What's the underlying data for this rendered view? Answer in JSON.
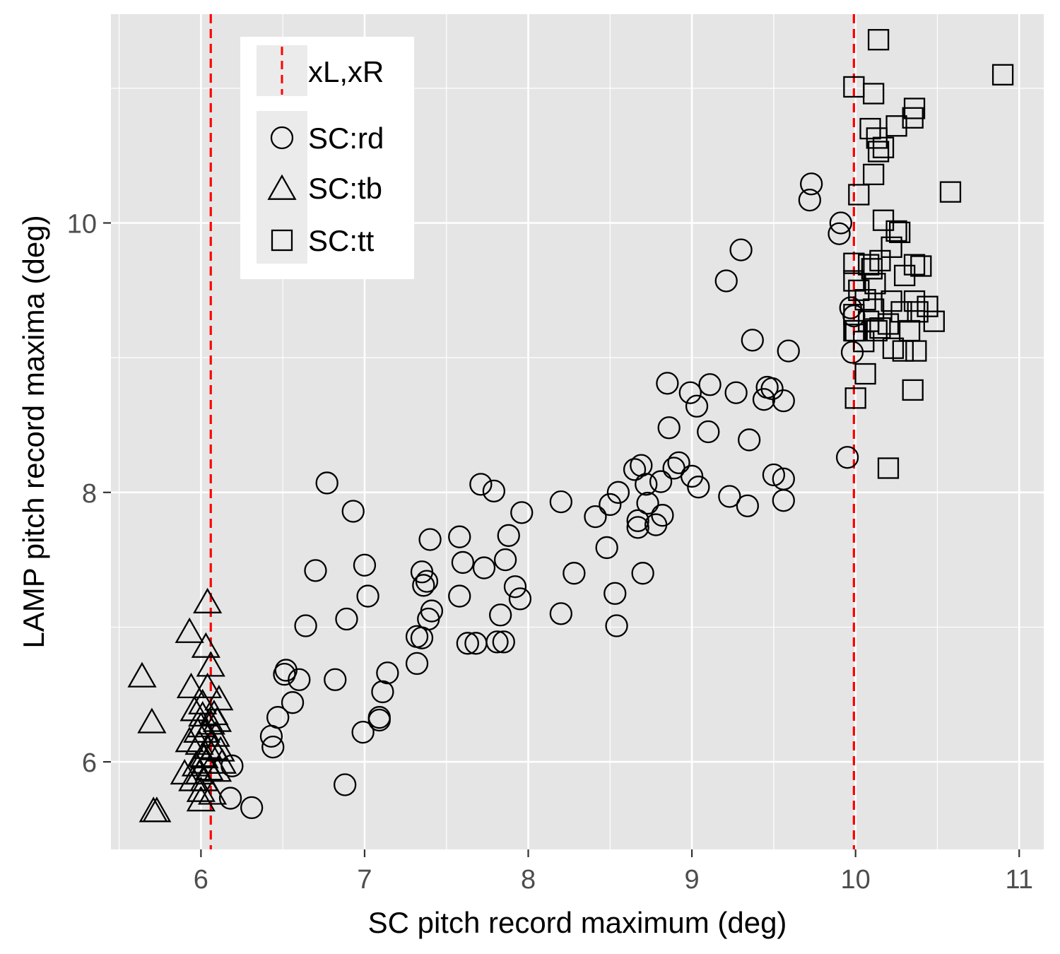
{
  "chart_data": {
    "type": "scatter",
    "title": "",
    "xlabel": "SC pitch record maximum (deg)",
    "ylabel": "LAMP pitch record maxima (deg)",
    "xlim": [
      5.45,
      11.15
    ],
    "ylim": [
      5.35,
      11.55
    ],
    "x_ticks": [
      6,
      7,
      8,
      9,
      10,
      11
    ],
    "x_minor_ticks": [
      5.5,
      6.5,
      7.5,
      8.5,
      9.5,
      10.5
    ],
    "y_ticks": [
      6,
      8,
      10
    ],
    "y_minor_ticks": [
      7,
      9,
      11
    ],
    "grid": true,
    "background": "#e5e5e5",
    "vlines": {
      "label": "xL,xR",
      "x": [
        6.06,
        9.99
      ],
      "color": "#ff0000",
      "style": "dashed"
    },
    "legend": {
      "position": "top-left inside",
      "line_entry": "xL,xR",
      "shape_entries": [
        {
          "label": "SC:rd",
          "shape": "circle"
        },
        {
          "label": "SC:tb",
          "shape": "triangle"
        },
        {
          "label": "SC:tt",
          "shape": "square"
        }
      ]
    },
    "series": [
      {
        "name": "SC:rd",
        "shape": "circle",
        "points": [
          [
            6.19,
            5.97
          ],
          [
            6.18,
            5.73
          ],
          [
            6.31,
            5.66
          ],
          [
            6.43,
            6.19
          ],
          [
            6.44,
            6.11
          ],
          [
            6.47,
            6.33
          ],
          [
            6.51,
            6.65
          ],
          [
            6.52,
            6.68
          ],
          [
            6.56,
            6.44
          ],
          [
            6.6,
            6.61
          ],
          [
            6.64,
            7.01
          ],
          [
            6.7,
            7.42
          ],
          [
            6.77,
            8.07
          ],
          [
            6.82,
            6.61
          ],
          [
            6.88,
            5.83
          ],
          [
            6.89,
            7.06
          ],
          [
            6.93,
            7.86
          ],
          [
            6.99,
            6.22
          ],
          [
            7.0,
            7.46
          ],
          [
            7.02,
            7.23
          ],
          [
            7.09,
            6.33
          ],
          [
            7.09,
            6.31
          ],
          [
            7.11,
            6.52
          ],
          [
            7.14,
            6.66
          ],
          [
            7.32,
            6.73
          ],
          [
            7.32,
            6.93
          ],
          [
            7.35,
            6.92
          ],
          [
            7.35,
            7.41
          ],
          [
            7.36,
            7.31
          ],
          [
            7.38,
            7.34
          ],
          [
            7.39,
            7.06
          ],
          [
            7.4,
            7.65
          ],
          [
            7.41,
            7.12
          ],
          [
            7.58,
            7.23
          ],
          [
            7.58,
            7.67
          ],
          [
            7.6,
            7.48
          ],
          [
            7.63,
            6.88
          ],
          [
            7.68,
            6.88
          ],
          [
            7.71,
            8.06
          ],
          [
            7.73,
            7.44
          ],
          [
            7.79,
            8.01
          ],
          [
            7.81,
            6.89
          ],
          [
            7.83,
            7.09
          ],
          [
            7.85,
            6.89
          ],
          [
            7.86,
            7.5
          ],
          [
            7.88,
            7.68
          ],
          [
            7.92,
            7.3
          ],
          [
            7.95,
            7.21
          ],
          [
            7.96,
            7.85
          ],
          [
            8.2,
            7.93
          ],
          [
            8.2,
            7.1
          ],
          [
            8.28,
            7.4
          ],
          [
            8.41,
            7.82
          ],
          [
            8.48,
            7.59
          ],
          [
            8.5,
            7.91
          ],
          [
            8.53,
            7.25
          ],
          [
            8.54,
            7.01
          ],
          [
            8.55,
            8.0
          ],
          [
            8.65,
            8.17
          ],
          [
            8.67,
            7.79
          ],
          [
            8.67,
            7.74
          ],
          [
            8.69,
            8.2
          ],
          [
            8.7,
            7.4
          ],
          [
            8.72,
            8.06
          ],
          [
            8.73,
            7.92
          ],
          [
            8.78,
            7.76
          ],
          [
            8.81,
            8.08
          ],
          [
            8.82,
            7.83
          ],
          [
            8.85,
            8.81
          ],
          [
            8.86,
            8.48
          ],
          [
            8.89,
            8.18
          ],
          [
            8.92,
            8.22
          ],
          [
            8.99,
            8.74
          ],
          [
            9.0,
            8.12
          ],
          [
            9.03,
            8.64
          ],
          [
            9.04,
            8.04
          ],
          [
            9.1,
            8.45
          ],
          [
            9.11,
            8.8
          ],
          [
            9.21,
            9.57
          ],
          [
            9.23,
            7.97
          ],
          [
            9.27,
            8.74
          ],
          [
            9.3,
            9.8
          ],
          [
            9.34,
            7.9
          ],
          [
            9.35,
            8.39
          ],
          [
            9.37,
            9.13
          ],
          [
            9.44,
            8.69
          ],
          [
            9.46,
            8.78
          ],
          [
            9.49,
            8.77
          ],
          [
            9.5,
            8.13
          ],
          [
            9.56,
            7.94
          ],
          [
            9.56,
            8.1
          ],
          [
            9.56,
            8.68
          ],
          [
            9.59,
            9.05
          ],
          [
            9.72,
            10.17
          ],
          [
            9.73,
            10.29
          ],
          [
            9.9,
            9.92
          ],
          [
            9.91,
            10.0
          ],
          [
            9.95,
            8.26
          ],
          [
            9.97,
            9.37
          ],
          [
            9.98,
            9.04
          ],
          [
            9.99,
            9.31
          ]
        ]
      },
      {
        "name": "SC:tb",
        "shape": "triangle",
        "points": [
          [
            5.64,
            6.63
          ],
          [
            5.7,
            6.29
          ],
          [
            5.71,
            5.63
          ],
          [
            5.73,
            5.63
          ],
          [
            5.9,
            5.91
          ],
          [
            5.93,
            6.15
          ],
          [
            5.93,
            6.96
          ],
          [
            5.94,
            6.55
          ],
          [
            5.95,
            5.86
          ],
          [
            5.96,
            6.38
          ],
          [
            5.97,
            5.97
          ],
          [
            5.98,
            6.22
          ],
          [
            5.99,
            5.91
          ],
          [
            5.99,
            6.13
          ],
          [
            6.0,
            5.71
          ],
          [
            6.0,
            5.78
          ],
          [
            6.0,
            6.26
          ],
          [
            6.01,
            6.04
          ],
          [
            6.01,
            6.34
          ],
          [
            6.01,
            6.43
          ],
          [
            6.02,
            5.86
          ],
          [
            6.02,
            6.03
          ],
          [
            6.03,
            5.99
          ],
          [
            6.03,
            6.22
          ],
          [
            6.03,
            6.85
          ],
          [
            6.04,
            6.1
          ],
          [
            6.04,
            6.55
          ],
          [
            6.04,
            7.18
          ],
          [
            6.05,
            5.94
          ],
          [
            6.06,
            6.28
          ],
          [
            6.06,
            6.71
          ],
          [
            6.07,
            5.76
          ],
          [
            6.08,
            6.09
          ],
          [
            6.08,
            6.35
          ],
          [
            6.09,
            6.19
          ],
          [
            6.1,
            5.93
          ],
          [
            6.1,
            6.3
          ],
          [
            6.11,
            6.46
          ],
          [
            6.12,
            6.08
          ],
          [
            6.13,
            5.99
          ]
        ]
      },
      {
        "name": "SC:tt",
        "shape": "square",
        "points": [
          [
            9.99,
            9.57
          ],
          [
            9.99,
            9.2
          ],
          [
            9.99,
            9.32
          ],
          [
            9.99,
            9.7
          ],
          [
            10.0,
            8.7
          ],
          [
            10.0,
            9.2
          ],
          [
            9.99,
            11.01
          ],
          [
            10.02,
            10.21
          ],
          [
            10.02,
            9.5
          ],
          [
            10.05,
            9.12
          ],
          [
            10.06,
            9.43
          ],
          [
            10.06,
            8.88
          ],
          [
            10.08,
            9.69
          ],
          [
            10.08,
            9.27
          ],
          [
            10.09,
            10.7
          ],
          [
            10.1,
            9.66
          ],
          [
            10.11,
            9.36
          ],
          [
            10.11,
            10.96
          ],
          [
            10.11,
            10.36
          ],
          [
            10.12,
            9.55
          ],
          [
            10.13,
            9.2
          ],
          [
            10.13,
            10.63
          ],
          [
            10.14,
            11.36
          ],
          [
            10.14,
            10.53
          ],
          [
            10.15,
            9.72
          ],
          [
            10.15,
            9.22
          ],
          [
            10.17,
            10.02
          ],
          [
            10.17,
            10.56
          ],
          [
            10.2,
            9.25
          ],
          [
            10.2,
            8.18
          ],
          [
            10.22,
            9.82
          ],
          [
            10.22,
            9.42
          ],
          [
            10.23,
            9.07
          ],
          [
            10.25,
            9.94
          ],
          [
            10.25,
            10.72
          ],
          [
            10.27,
            9.93
          ],
          [
            10.28,
            9.34
          ],
          [
            10.29,
            9.05
          ],
          [
            10.3,
            9.61
          ],
          [
            10.33,
            9.2
          ],
          [
            10.35,
            10.78
          ],
          [
            10.35,
            8.76
          ],
          [
            10.36,
            10.85
          ],
          [
            10.36,
            9.69
          ],
          [
            10.36,
            9.42
          ],
          [
            10.37,
            9.05
          ],
          [
            10.38,
            9.34
          ],
          [
            10.4,
            9.68
          ],
          [
            10.44,
            9.38
          ],
          [
            10.48,
            9.27
          ],
          [
            10.58,
            10.23
          ],
          [
            10.9,
            11.1
          ]
        ]
      }
    ]
  }
}
